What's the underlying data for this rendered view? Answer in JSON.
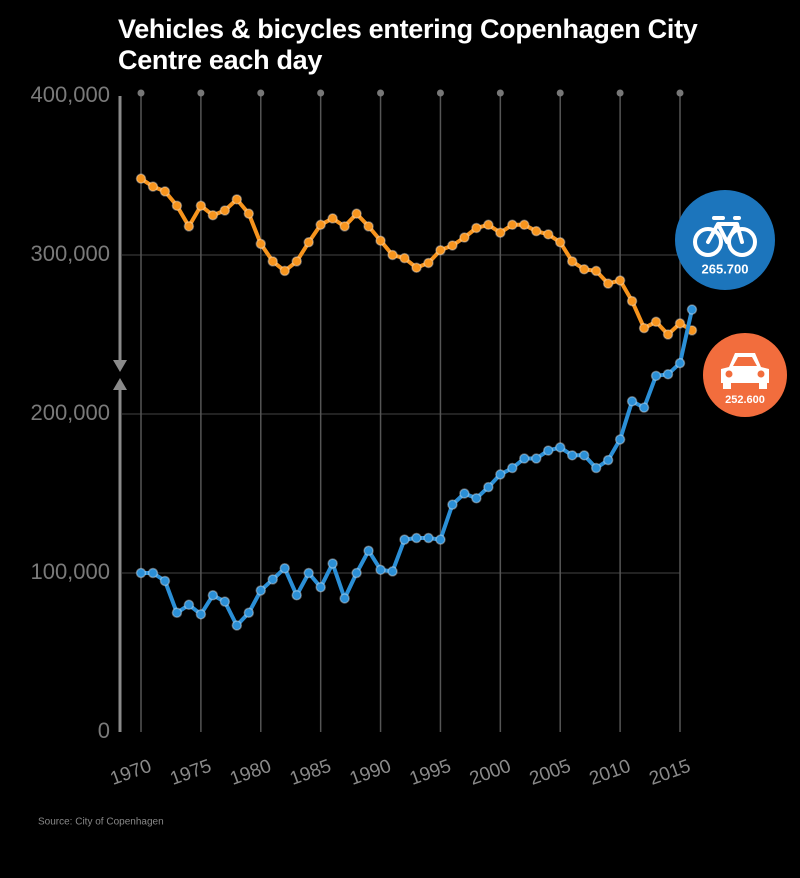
{
  "chart_data": {
    "type": "line",
    "title": "Vehicles & bicycles entering Copenhagen City Centre each day",
    "source": "Source: City of Copenhagen",
    "x": [
      1970,
      1971,
      1972,
      1973,
      1974,
      1975,
      1976,
      1977,
      1978,
      1979,
      1980,
      1981,
      1982,
      1983,
      1984,
      1985,
      1986,
      1987,
      1988,
      1989,
      1990,
      1991,
      1992,
      1993,
      1994,
      1995,
      1996,
      1997,
      1998,
      1999,
      2000,
      2001,
      2002,
      2003,
      2004,
      2005,
      2006,
      2007,
      2008,
      2009,
      2010,
      2011,
      2012,
      2013,
      2014,
      2015,
      2016
    ],
    "series": [
      {
        "name": "Vehicles",
        "color": "#f7941d",
        "badge_color": "#f26d3d",
        "badge_label": "252.600",
        "values": [
          348000,
          343000,
          340000,
          331000,
          318000,
          331000,
          325000,
          328000,
          335000,
          326000,
          307000,
          296000,
          290000,
          296000,
          308000,
          319000,
          323000,
          318000,
          326000,
          318000,
          309000,
          300000,
          298000,
          292000,
          295000,
          303000,
          306000,
          311000,
          317000,
          319000,
          314000,
          319000,
          319000,
          315000,
          313000,
          308000,
          296000,
          291000,
          290000,
          282000,
          284000,
          271000,
          254000,
          258000,
          250000,
          257000,
          252600
        ]
      },
      {
        "name": "Bicycles",
        "color": "#2b8fd6",
        "badge_color": "#1c75bc",
        "badge_label": "265.700",
        "values": [
          100000,
          100000,
          95000,
          75000,
          80000,
          74000,
          86000,
          82000,
          67000,
          75000,
          89000,
          96000,
          103000,
          86000,
          100000,
          91000,
          106000,
          84000,
          100000,
          114000,
          102000,
          101000,
          121000,
          122000,
          122000,
          121000,
          143000,
          150000,
          147000,
          154000,
          162000,
          166000,
          172000,
          172000,
          177000,
          179000,
          174000,
          174000,
          166000,
          171000,
          184000,
          208000,
          204000,
          224000,
          225000,
          232000,
          265700
        ]
      }
    ],
    "xlim": [
      1970,
      2015
    ],
    "xticks": [
      1970,
      1975,
      1980,
      1985,
      1990,
      1995,
      2000,
      2005,
      2010,
      2015
    ],
    "ylim": [
      0,
      400000
    ],
    "yticks": [
      0,
      {
        "value": 100000,
        "label": "100,000"
      },
      {
        "value": 200000,
        "label": "200,000"
      },
      {
        "value": 300000,
        "label": "300,000"
      },
      {
        "value": 400000,
        "label": "400,000"
      }
    ],
    "grid": true
  }
}
